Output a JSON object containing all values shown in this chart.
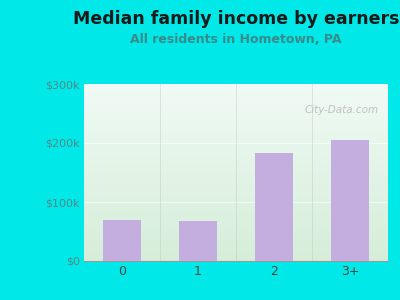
{
  "categories": [
    "0",
    "1",
    "2",
    "3+"
  ],
  "values": [
    70000,
    68000,
    183000,
    205000
  ],
  "bar_color": "#c4aee0",
  "title": "Median family income by earners",
  "subtitle": "All residents in Hometown, PA",
  "ylim": [
    0,
    300000
  ],
  "yticks": [
    0,
    100000,
    200000,
    300000
  ],
  "ytick_labels": [
    "$0",
    "$100k",
    "$200k",
    "$300k"
  ],
  "outer_bg": "#00e8e8",
  "plot_bg_top": "#f0faf5",
  "plot_bg_bottom": "#d5edd8",
  "title_color": "#1a1a1a",
  "subtitle_color": "#3a8a8a",
  "title_fontsize": 12.5,
  "subtitle_fontsize": 9,
  "watermark": "City-Data.com",
  "watermark_color": "#b8b8b8",
  "ytick_color": "#558888",
  "xtick_color": "#444444"
}
